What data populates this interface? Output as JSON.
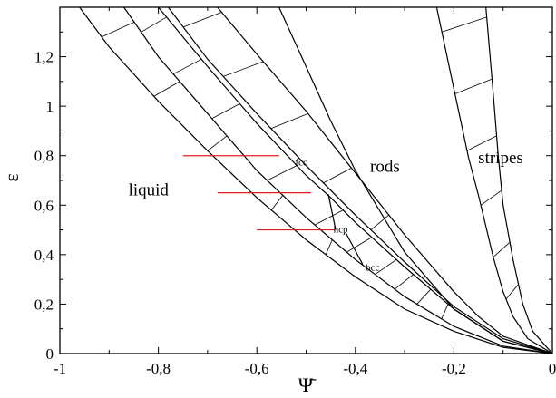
{
  "chart_data": {
    "type": "line",
    "title": "",
    "xlabel": "Ψ̄",
    "ylabel": "ε",
    "xlim": [
      -1,
      0
    ],
    "ylim": [
      0,
      1.4
    ],
    "x_ticks": [
      "-1",
      "-0,8",
      "-0,6",
      "-0,4",
      "-0,2",
      "0"
    ],
    "y_ticks": [
      "0",
      "0,2",
      "0,4",
      "0,6",
      "0,8",
      "1",
      "1,2"
    ],
    "x_tick_values": [
      -1,
      -0.8,
      -0.6,
      -0.4,
      -0.2,
      0
    ],
    "y_tick_values": [
      0,
      0.2,
      0.4,
      0.6,
      0.8,
      1.0,
      1.2
    ],
    "regions": [
      {
        "label": "liquid",
        "x": -0.82,
        "y": 0.64
      },
      {
        "label": "fcc",
        "x": -0.51,
        "y": 0.76
      },
      {
        "label": "hcp",
        "x": -0.43,
        "y": 0.49
      },
      {
        "label": "bcc",
        "x": -0.365,
        "y": 0.335
      },
      {
        "label": "rods",
        "x": -0.34,
        "y": 0.735
      },
      {
        "label": "stripes",
        "x": -0.105,
        "y": 0.77
      }
    ],
    "series": [
      {
        "values": [
          [
            -0.96,
            1.4
          ],
          [
            -0.9,
            1.24
          ],
          [
            -0.8,
            1.02
          ],
          [
            -0.7,
            0.82
          ],
          [
            -0.6,
            0.63
          ],
          [
            -0.5,
            0.46
          ],
          [
            -0.4,
            0.31
          ],
          [
            -0.3,
            0.18
          ],
          [
            -0.2,
            0.09
          ],
          [
            -0.1,
            0.025
          ],
          [
            0,
            0
          ]
        ]
      },
      {
        "values": [
          [
            -0.87,
            1.4
          ],
          [
            -0.8,
            1.2
          ],
          [
            -0.7,
            0.97
          ],
          [
            -0.6,
            0.74
          ],
          [
            -0.5,
            0.55
          ],
          [
            -0.4,
            0.38
          ],
          [
            -0.3,
            0.23
          ],
          [
            -0.2,
            0.11
          ],
          [
            -0.1,
            0.03
          ],
          [
            0,
            0
          ]
        ]
      },
      {
        "values": [
          [
            -0.8,
            1.4
          ],
          [
            -0.7,
            1.16
          ],
          [
            -0.6,
            0.93
          ],
          [
            -0.5,
            0.72
          ],
          [
            -0.45,
            0.63
          ],
          [
            -0.4,
            0.53
          ],
          [
            -0.3,
            0.35
          ],
          [
            -0.2,
            0.18
          ],
          [
            -0.1,
            0.05
          ],
          [
            0,
            0
          ]
        ]
      },
      {
        "values": [
          [
            -0.78,
            1.4
          ],
          [
            -0.7,
            1.19
          ],
          [
            -0.6,
            0.97
          ],
          [
            -0.5,
            0.76
          ],
          [
            -0.4,
            0.56
          ],
          [
            -0.3,
            0.37
          ],
          [
            -0.2,
            0.19
          ],
          [
            -0.1,
            0.06
          ],
          [
            0,
            0
          ]
        ]
      },
      {
        "values": [
          [
            -0.68,
            1.4
          ],
          [
            -0.6,
            1.21
          ],
          [
            -0.5,
            0.98
          ],
          [
            -0.4,
            0.73
          ],
          [
            -0.3,
            0.48
          ],
          [
            -0.2,
            0.25
          ],
          [
            -0.15,
            0.15
          ],
          [
            -0.1,
            0.07
          ],
          [
            0,
            0
          ]
        ]
      },
      {
        "values": [
          [
            -0.555,
            1.4
          ],
          [
            -0.5,
            1.16
          ],
          [
            -0.45,
            0.94
          ],
          [
            -0.4,
            0.74
          ],
          [
            -0.3,
            0.41
          ],
          [
            -0.2,
            0.18
          ],
          [
            -0.1,
            0.05
          ],
          [
            0,
            0
          ]
        ]
      },
      {
        "values": [
          [
            -0.235,
            1.4
          ],
          [
            -0.2,
            1.07
          ],
          [
            -0.17,
            0.79
          ],
          [
            -0.15,
            0.64
          ],
          [
            -0.12,
            0.39
          ],
          [
            -0.1,
            0.25
          ],
          [
            -0.08,
            0.15
          ],
          [
            -0.05,
            0.06
          ],
          [
            0,
            0
          ]
        ]
      },
      {
        "values": [
          [
            -0.135,
            1.4
          ],
          [
            -0.12,
            1.05
          ],
          [
            -0.11,
            0.8
          ],
          [
            -0.1,
            0.6
          ],
          [
            -0.08,
            0.38
          ],
          [
            -0.06,
            0.2
          ],
          [
            -0.04,
            0.09
          ],
          [
            0,
            0
          ]
        ]
      }
    ],
    "phase_segments": [
      [
        [
          -0.455,
          0.645
        ],
        [
          -0.44,
          0.5
        ]
      ],
      [
        [
          -0.42,
          0.49
        ],
        [
          -0.385,
          0.36
        ]
      ]
    ],
    "red_lines": [
      {
        "y": 0.8,
        "x_start": -0.75,
        "x_end": -0.555
      },
      {
        "y": 0.65,
        "x_start": -0.68,
        "x_end": -0.49
      },
      {
        "y": 0.5,
        "x_start": -0.6,
        "x_end": -0.44
      }
    ],
    "tie_lines": [
      {
        "band": [
          0,
          1
        ],
        "values": [
          1.28,
          1.04,
          0.82,
          0.58,
          0.4
        ]
      },
      {
        "band": [
          1,
          2
        ],
        "values": [
          1.3,
          1.13,
          0.95,
          0.7,
          0.52,
          0.41,
          0.32,
          0.26,
          0.2,
          0.14
        ]
      },
      {
        "band": [
          3,
          4
        ],
        "values": [
          1.32,
          1.12,
          0.91,
          0.69,
          0.5
        ]
      },
      {
        "band": [
          6,
          7
        ],
        "values": [
          1.3,
          1.05,
          0.82,
          0.6,
          0.39,
          0.22
        ]
      }
    ],
    "grid": false,
    "legend": "none"
  }
}
